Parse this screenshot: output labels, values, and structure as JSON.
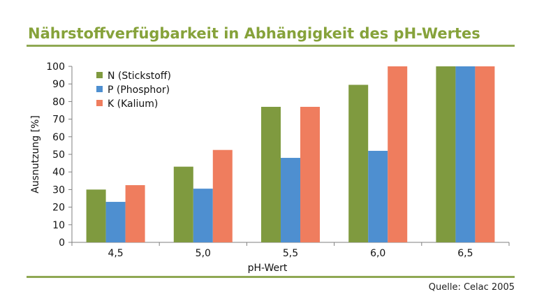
{
  "title": "Nährstoffverfügbarkeit in Abhängigkeit des pH-Wertes",
  "source": "Quelle: Celac 2005",
  "chart_data": {
    "type": "bar",
    "xlabel": "pH-Wert",
    "ylabel": "Ausnutzung [%]",
    "ylim": [
      0,
      100
    ],
    "yticks": [
      0,
      10,
      20,
      30,
      40,
      50,
      60,
      70,
      80,
      90,
      100
    ],
    "categories": [
      "4,5",
      "5,0",
      "5,5",
      "6,0",
      "6,5"
    ],
    "legend_position": "top-left",
    "series": [
      {
        "name": "N (Stickstoff)",
        "color": "#7f9a3f",
        "values": [
          30,
          43,
          77,
          89.5,
          100
        ]
      },
      {
        "name": "P (Phosphor)",
        "color": "#4e8fd0",
        "values": [
          23,
          30.5,
          48,
          52,
          100
        ]
      },
      {
        "name": "K (Kalium)",
        "color": "#ef7d5e",
        "values": [
          32.5,
          52.5,
          77,
          100,
          100
        ]
      }
    ]
  }
}
